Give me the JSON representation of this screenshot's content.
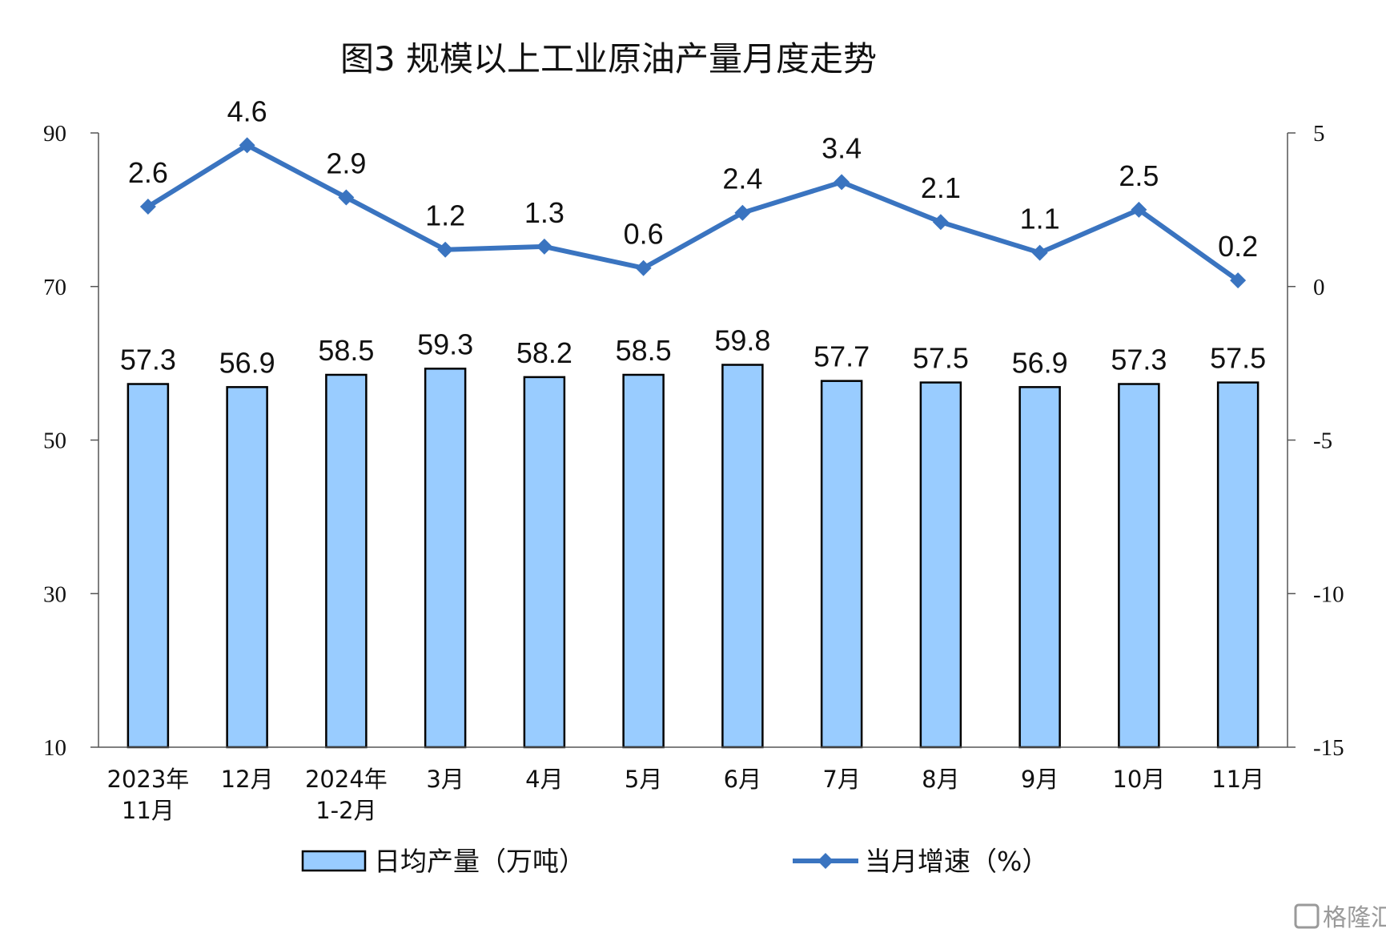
{
  "chart_data": {
    "type": "bar+line",
    "title": "图3 规模以上工业原油产量月度走势",
    "categories": [
      [
        "2023年",
        "11月"
      ],
      [
        "12月"
      ],
      [
        "2024年",
        "1-2月"
      ],
      [
        "3月"
      ],
      [
        "4月"
      ],
      [
        "5月"
      ],
      [
        "6月"
      ],
      [
        "7月"
      ],
      [
        "8月"
      ],
      [
        "9月"
      ],
      [
        "10月"
      ],
      [
        "11月"
      ]
    ],
    "series": [
      {
        "name": "日均产量（万吨）",
        "kind": "bar",
        "axis": "left",
        "color": "#99CCFF",
        "values": [
          57.3,
          56.9,
          58.5,
          59.3,
          58.2,
          58.5,
          59.8,
          57.7,
          57.5,
          56.9,
          57.3,
          57.5
        ]
      },
      {
        "name": "当月增速（%）",
        "kind": "line",
        "axis": "right",
        "color": "#3A74C0",
        "values": [
          2.6,
          4.6,
          2.9,
          1.2,
          1.3,
          0.6,
          2.4,
          3.4,
          2.1,
          1.1,
          2.5,
          0.2
        ]
      }
    ],
    "y_left": {
      "ylim": [
        10,
        90
      ],
      "ticks": [
        10,
        30,
        50,
        70,
        90
      ]
    },
    "y_right": {
      "ylim": [
        -15,
        5
      ],
      "ticks": [
        -15,
        -10,
        -5,
        0,
        5
      ]
    },
    "legend_position": "bottom",
    "grid": false
  },
  "watermark": {
    "text": "格隆汇",
    "icon": "glh-logo-icon"
  }
}
